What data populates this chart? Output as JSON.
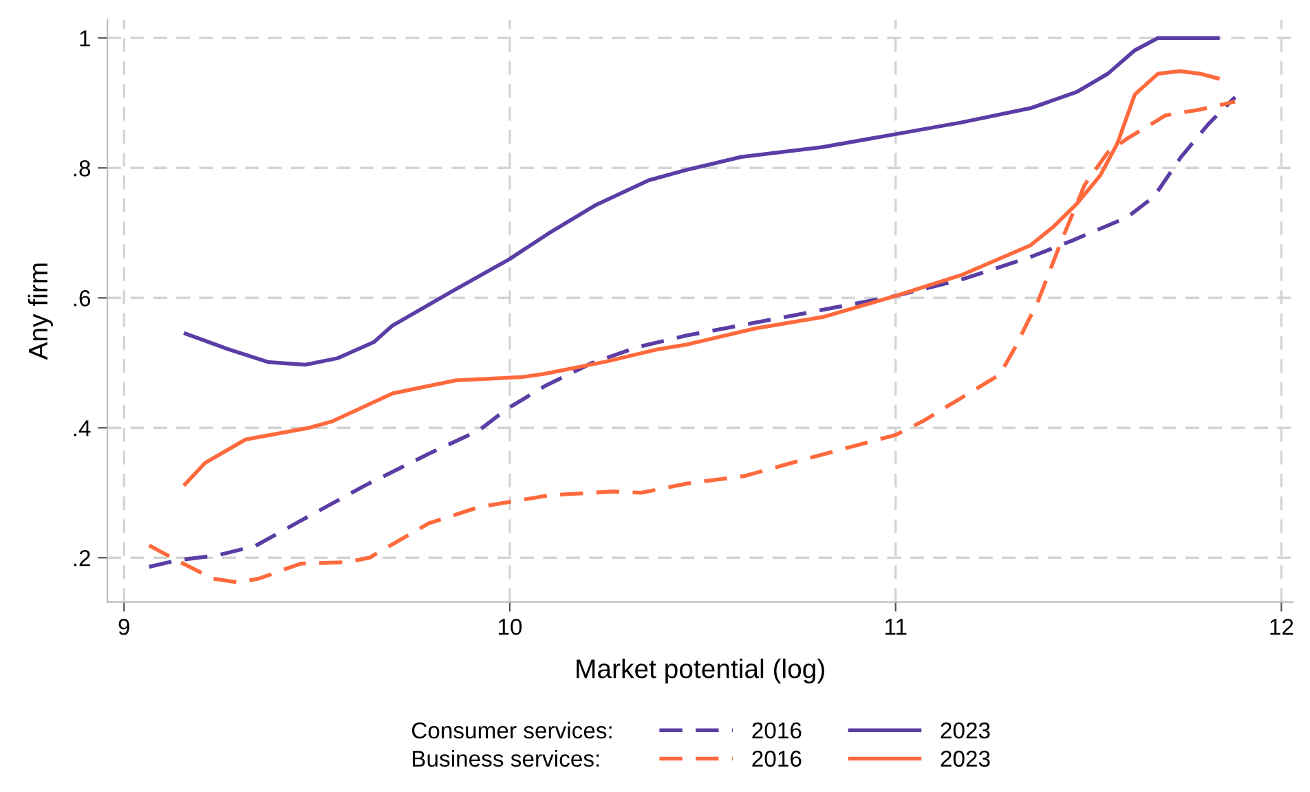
{
  "chart_data": {
    "type": "line",
    "xlabel": "Market potential (log)",
    "ylabel": "Any firm",
    "xlim": [
      8.957,
      12.03
    ],
    "ylim": [
      0.132,
      1.028
    ],
    "xticks": [
      9,
      10,
      11,
      12
    ],
    "yticks": [
      {
        "value": 0.2,
        "label": ".2"
      },
      {
        "value": 0.4,
        "label": ".4"
      },
      {
        "value": 0.6,
        "label": ".6"
      },
      {
        "value": 0.8,
        "label": ".8"
      },
      {
        "value": 1,
        "label": "1"
      }
    ],
    "grid": true,
    "legend": "bottom",
    "marker": "none",
    "annotations": [
      "Consumer services:",
      "Business services:"
    ],
    "series": [
      {
        "name": "2016",
        "color": "#5a3da5",
        "line_style": "dashed",
        "x": [
          9.065,
          9.137,
          9.244,
          9.34,
          9.458,
          9.624,
          9.79,
          9.92,
          9.99,
          10.09,
          10.21,
          10.33,
          10.458,
          10.7,
          11.0,
          11.17,
          11.35,
          11.457,
          11.6,
          11.67,
          11.74,
          11.81,
          11.88
        ],
        "values": [
          0.186,
          0.196,
          0.204,
          0.218,
          0.257,
          0.311,
          0.36,
          0.396,
          0.428,
          0.464,
          0.499,
          0.524,
          0.542,
          0.569,
          0.603,
          0.628,
          0.663,
          0.688,
          0.724,
          0.756,
          0.817,
          0.867,
          0.909
        ]
      },
      {
        "name": "2023",
        "color": "#5a3da5",
        "line_style": "solid",
        "x": [
          9.155,
          9.27,
          9.375,
          9.47,
          9.553,
          9.648,
          9.695,
          9.85,
          10.0,
          10.1,
          10.22,
          10.36,
          10.458,
          10.6,
          10.81,
          11.0,
          11.17,
          11.35,
          11.47,
          11.55,
          11.62,
          11.68,
          11.84
        ],
        "values": [
          0.546,
          0.521,
          0.501,
          0.497,
          0.507,
          0.532,
          0.557,
          0.61,
          0.66,
          0.699,
          0.742,
          0.781,
          0.797,
          0.817,
          0.832,
          0.852,
          0.87,
          0.892,
          0.917,
          0.945,
          0.981,
          1.0,
          1.0
        ]
      },
      {
        "name": "2016",
        "color": "#ff6a3d",
        "line_style": "dashed",
        "x": [
          9.065,
          9.137,
          9.23,
          9.297,
          9.35,
          9.458,
          9.577,
          9.636,
          9.79,
          9.92,
          10.0,
          10.1,
          10.27,
          10.34,
          10.458,
          10.61,
          10.755,
          10.93,
          11.0,
          11.07,
          11.17,
          11.27,
          11.31,
          11.37,
          11.43,
          11.49,
          11.55,
          11.6,
          11.7,
          11.79,
          11.88
        ],
        "values": [
          0.219,
          0.196,
          0.168,
          0.162,
          0.168,
          0.191,
          0.193,
          0.2,
          0.253,
          0.278,
          0.286,
          0.296,
          0.302,
          0.3,
          0.314,
          0.326,
          0.35,
          0.378,
          0.389,
          0.41,
          0.446,
          0.482,
          0.524,
          0.596,
          0.688,
          0.774,
          0.824,
          0.845,
          0.881,
          0.89,
          0.902
        ]
      },
      {
        "name": "2023",
        "color": "#ff6a3d",
        "line_style": "solid",
        "x": [
          9.155,
          9.21,
          9.315,
          9.48,
          9.54,
          9.696,
          9.86,
          10.03,
          10.09,
          10.25,
          10.385,
          10.458,
          10.636,
          10.815,
          11.0,
          11.17,
          11.35,
          11.41,
          11.47,
          11.53,
          11.575,
          11.62,
          11.68,
          11.736,
          11.79,
          11.84
        ],
        "values": [
          0.311,
          0.346,
          0.382,
          0.4,
          0.41,
          0.453,
          0.473,
          0.478,
          0.483,
          0.502,
          0.521,
          0.528,
          0.553,
          0.571,
          0.603,
          0.635,
          0.681,
          0.71,
          0.745,
          0.788,
          0.838,
          0.913,
          0.945,
          0.949,
          0.945,
          0.937
        ]
      }
    ]
  }
}
